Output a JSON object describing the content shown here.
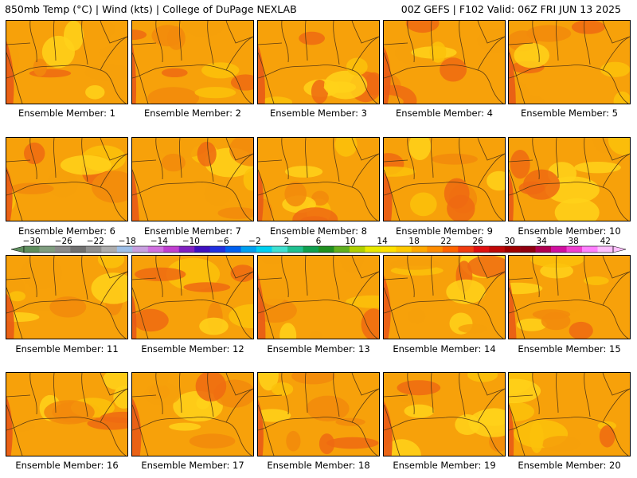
{
  "header": {
    "left": "850mb Temp (°C) | Wind (kts) | College of DuPage NEXLAB",
    "right": "00Z GEFS | F102 Valid: 06Z FRI JUN 13 2025"
  },
  "members": [
    "Ensemble Member: 1",
    "Ensemble Member: 2",
    "Ensemble Member: 3",
    "Ensemble Member: 4",
    "Ensemble Member: 5",
    "Ensemble Member: 6",
    "Ensemble Member: 7",
    "Ensemble Member: 8",
    "Ensemble Member: 9",
    "Ensemble Member: 10",
    "Ensemble Member: 11",
    "Ensemble Member: 12",
    "Ensemble Member: 13",
    "Ensemble Member: 14",
    "Ensemble Member: 15",
    "Ensemble Member: 16",
    "Ensemble Member: 17",
    "Ensemble Member: 18",
    "Ensemble Member: 19",
    "Ensemble Member: 20"
  ],
  "colorbar": {
    "labels": [
      "-30",
      "-26",
      "-22",
      "-18",
      "-14",
      "-10",
      "-6",
      "-2",
      "2",
      "6",
      "10",
      "14",
      "18",
      "22",
      "26",
      "30",
      "34",
      "38",
      "42"
    ],
    "colors": [
      "#5e8e5e",
      "#7f9d7f",
      "#8a8a8a",
      "#707070",
      "#8f8f8f",
      "#adadad",
      "#9ec0e8",
      "#c8a0e0",
      "#d070e0",
      "#c040d0",
      "#8020c0",
      "#4010c0",
      "#2030e0",
      "#0060f0",
      "#00a0f0",
      "#00d0f0",
      "#40e0d0",
      "#20c090",
      "#10a050",
      "#209020",
      "#60b020",
      "#b0d000",
      "#e8e800",
      "#ffe000",
      "#ffc800",
      "#ffa800",
      "#ff8c00",
      "#ff6400",
      "#f03c10",
      "#e01010",
      "#c00808",
      "#a00000",
      "#900010",
      "#b00050",
      "#d010a0",
      "#f040d0",
      "#ff80ff",
      "#ffc0ff"
    ]
  }
}
